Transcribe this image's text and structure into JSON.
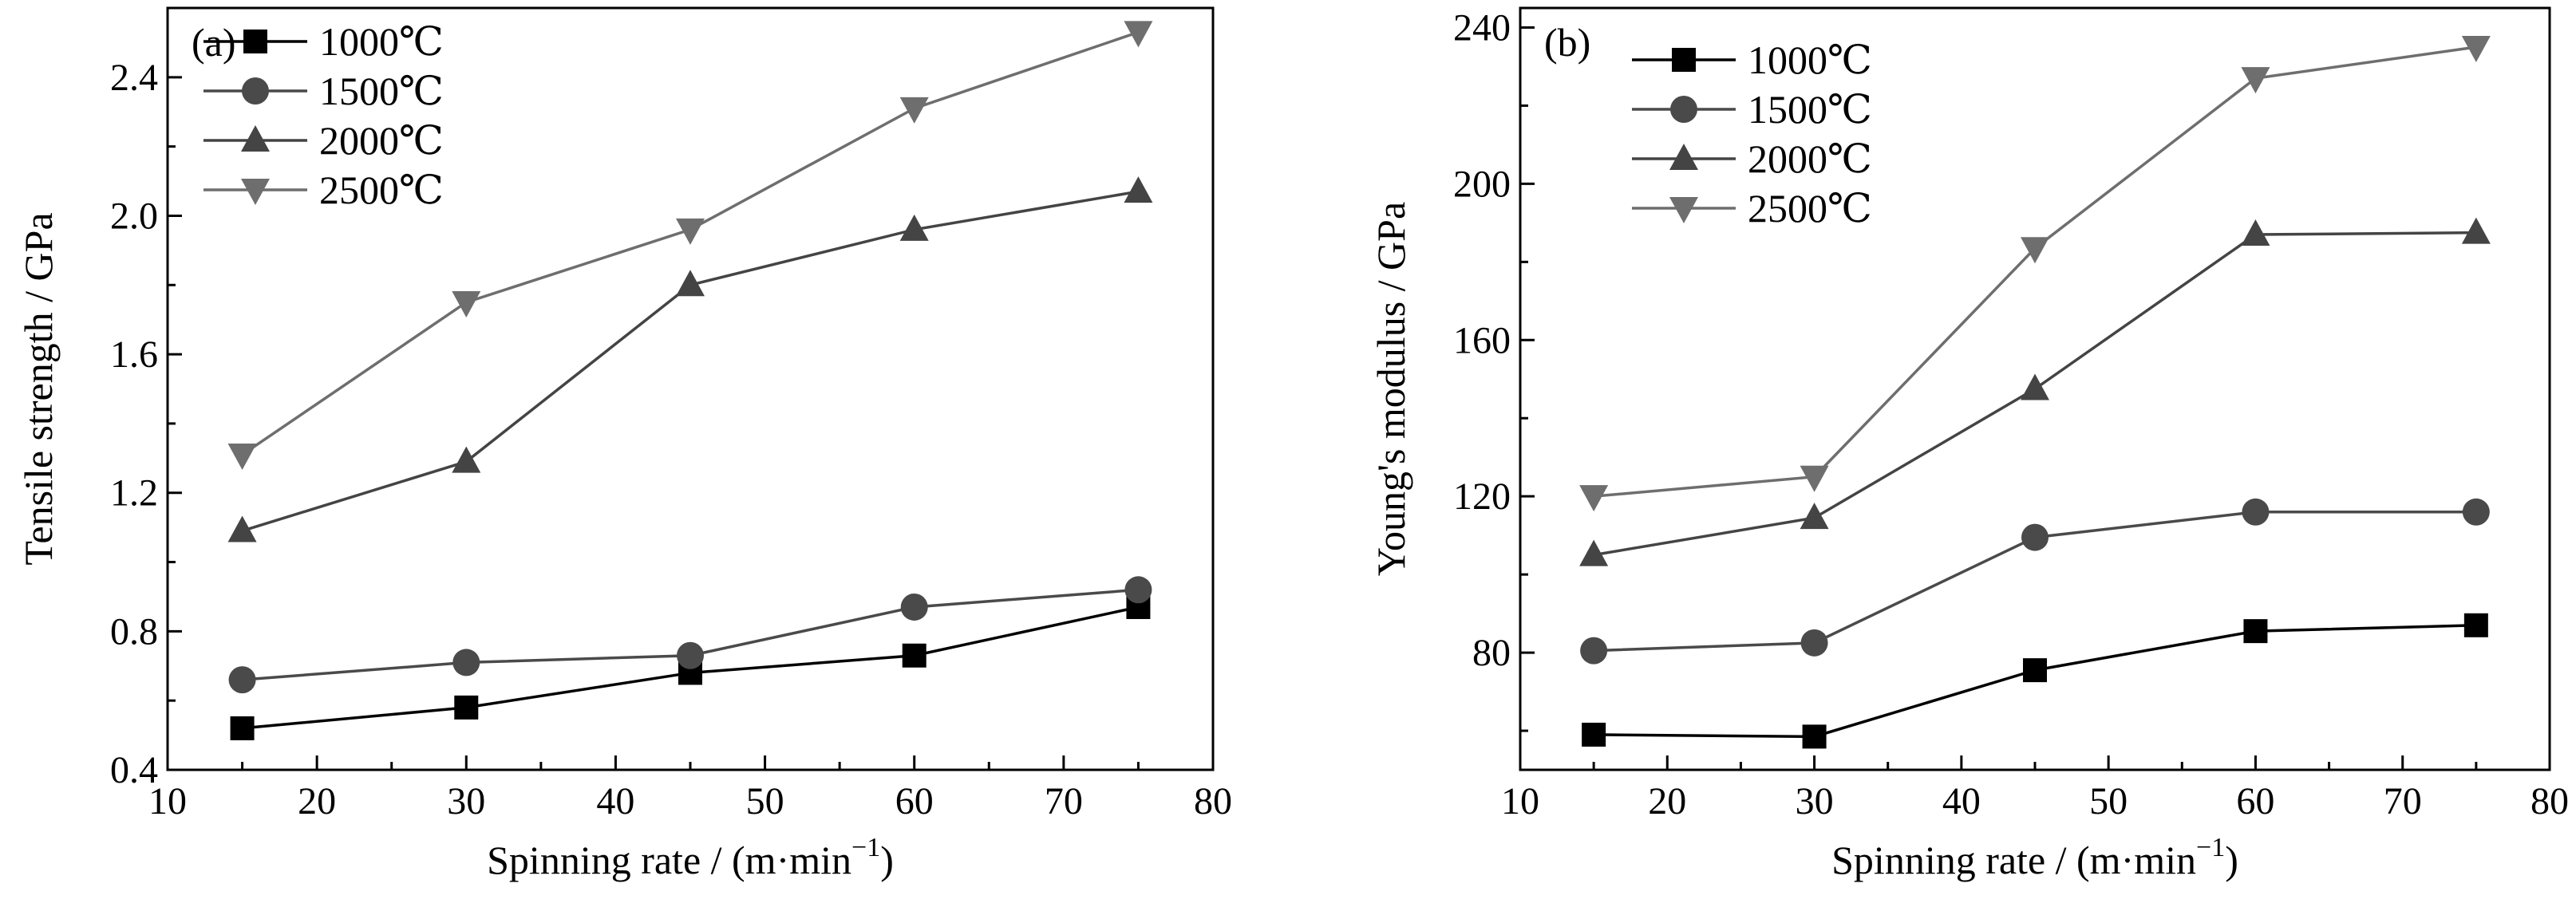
{
  "chart_data": [
    {
      "type": "line",
      "panel_label": "(a)",
      "xlabel": "Spinning rate / (m·min",
      "xlabel_sup": "−1",
      "xlabel_end": ")",
      "ylabel": "Tensile strength / GPa",
      "xlim": [
        10,
        80
      ],
      "ylim": [
        0.4,
        2.6
      ],
      "xticks": [
        10,
        20,
        30,
        40,
        50,
        60,
        70,
        80
      ],
      "xtick_labels": [
        "10",
        "20",
        "30",
        "40",
        "50",
        "60",
        "70",
        "80"
      ],
      "yticks": [
        0.4,
        0.8,
        1.2,
        1.6,
        2.0,
        2.4
      ],
      "ytick_labels": [
        "0.4",
        "0.8",
        "1.2",
        "1.6",
        "2.0",
        "2.4"
      ],
      "grid": false,
      "legend_position": "top-left",
      "x": [
        15,
        30,
        45,
        60,
        75
      ],
      "series": [
        {
          "name": "1000℃",
          "marker": "square",
          "color": "#000000",
          "values": [
            0.52,
            0.58,
            0.68,
            0.73,
            0.87
          ]
        },
        {
          "name": "1500℃",
          "marker": "circle",
          "color": "#4a4a4a",
          "values": [
            0.66,
            0.71,
            0.73,
            0.87,
            0.92
          ]
        },
        {
          "name": "2000℃",
          "marker": "triangle-up",
          "color": "#444444",
          "values": [
            1.09,
            1.29,
            1.8,
            1.96,
            2.07
          ]
        },
        {
          "name": "2500℃",
          "marker": "triangle-down",
          "color": "#6e6e6e",
          "values": [
            1.31,
            1.75,
            1.96,
            2.31,
            2.53
          ]
        }
      ]
    },
    {
      "type": "line",
      "panel_label": "(b)",
      "xlabel": "Spinning rate / (m·min",
      "xlabel_sup": "−1",
      "xlabel_end": ")",
      "ylabel": "Young's modulus / GPa",
      "xlim": [
        10,
        80
      ],
      "ylim": [
        50,
        245
      ],
      "xticks": [
        10,
        20,
        30,
        40,
        50,
        60,
        70,
        80
      ],
      "xtick_labels": [
        "10",
        "20",
        "30",
        "40",
        "50",
        "60",
        "70",
        "80"
      ],
      "yticks": [
        80,
        120,
        160,
        200,
        240
      ],
      "ytick_labels": [
        "80",
        "120",
        "160",
        "200",
        "240"
      ],
      "grid": false,
      "legend_position": "top-left",
      "x": [
        15,
        30,
        45,
        60,
        75
      ],
      "series": [
        {
          "name": "1000℃",
          "marker": "square",
          "color": "#000000",
          "values": [
            59,
            58.5,
            75.5,
            85.5,
            87
          ]
        },
        {
          "name": "1500℃",
          "marker": "circle",
          "color": "#4a4a4a",
          "values": [
            80.5,
            82.5,
            109.5,
            116,
            116
          ]
        },
        {
          "name": "2000℃",
          "marker": "triangle-up",
          "color": "#444444",
          "values": [
            105,
            114.5,
            147.5,
            187,
            187.5
          ]
        },
        {
          "name": "2500℃",
          "marker": "triangle-down",
          "color": "#6e6e6e",
          "values": [
            120,
            125,
            183.5,
            227,
            235
          ]
        }
      ]
    }
  ]
}
